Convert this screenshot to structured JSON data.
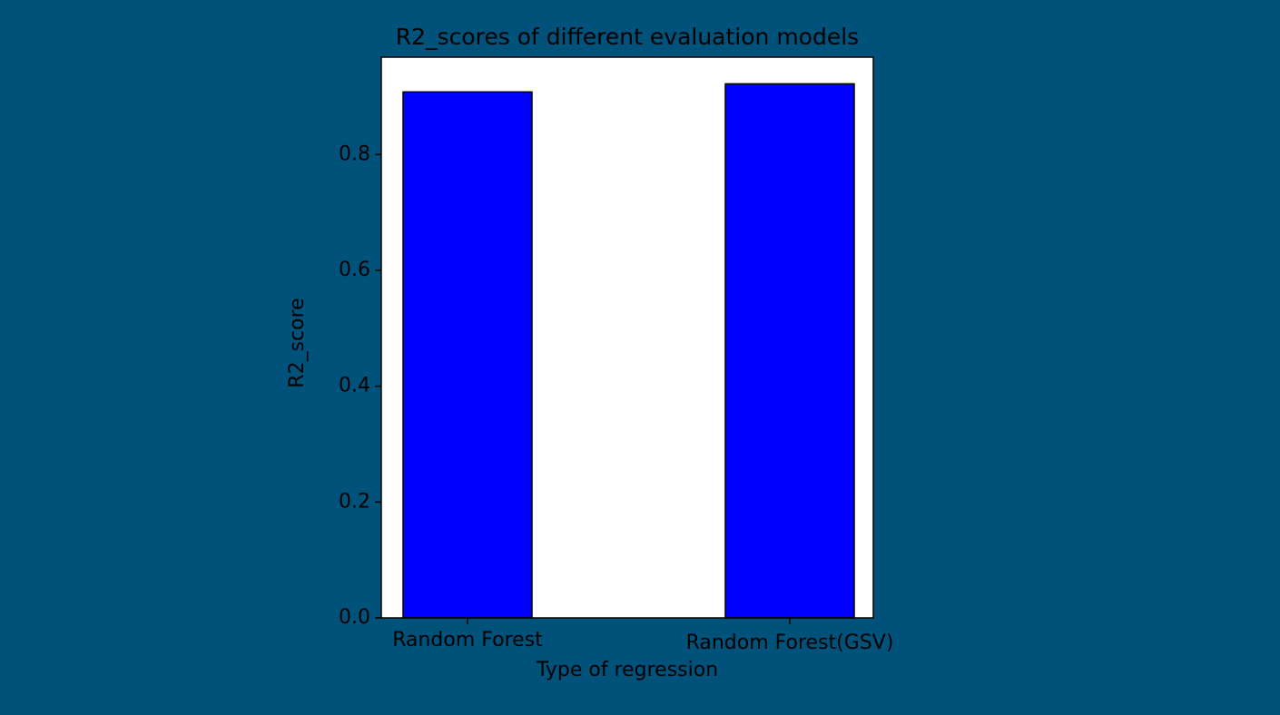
{
  "chart_data": {
    "type": "bar",
    "title": "R2_scores of different evaluation models",
    "x_label": "Type of regression",
    "y_label": "R2_score",
    "categories": [
      "Random Forest",
      "Random Forest(GSV)"
    ],
    "values": [
      0.908,
      0.922
    ],
    "color": "#0000ff",
    "edgecolor": "#000000",
    "ylim": [
      0,
      0.968
    ],
    "yticks": [
      {
        "value": 0,
        "label": "0.0"
      },
      0.2,
      0.4,
      0.6,
      0.8
    ],
    "grid": false
  }
}
